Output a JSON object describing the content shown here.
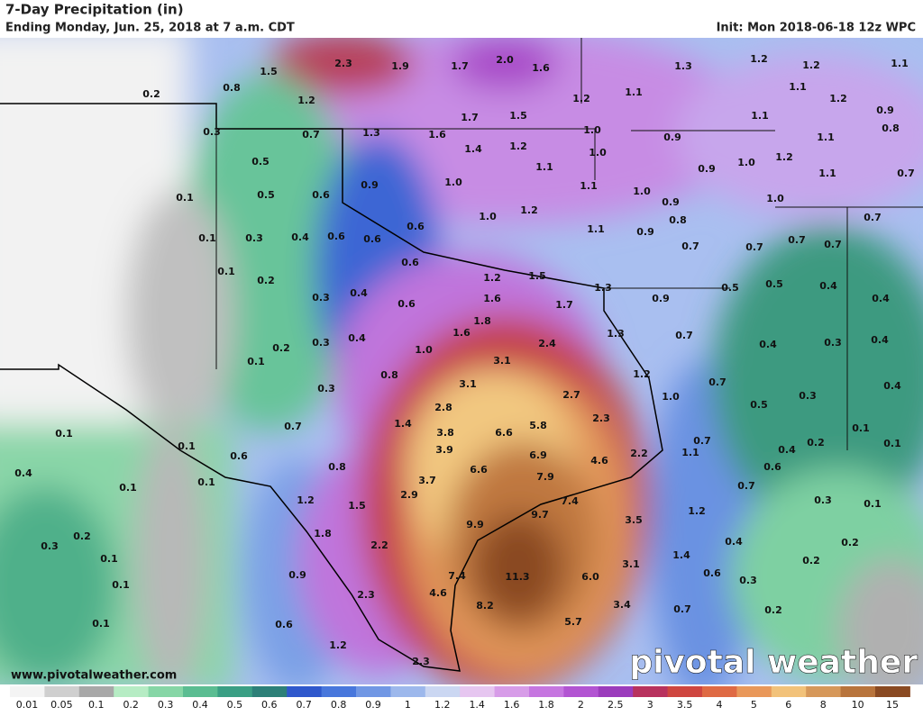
{
  "header": {
    "title": "7-Day Precipitation (in)",
    "subtitle": "Ending Monday, Jun. 25, 2018 at 7 a.m. CDT",
    "init": "Init: Mon 2018-06-18 12z WPC"
  },
  "footer": {
    "website": "www.pivotalweather.com",
    "logo": "pivotal weather"
  },
  "map_labels": [
    "1.5",
    "2.3",
    "1.9",
    "1.7",
    "2.0",
    "1.6",
    "1.3",
    "1.2",
    "1.2",
    "1.1",
    "0.2",
    "0.8",
    "1.2",
    "1.2",
    "1.1",
    "1.1",
    "1.2",
    "0.3",
    "0.7",
    "1.3",
    "1.6",
    "1.7",
    "1.5",
    "1.0",
    "0.9",
    "1.1",
    "0.9",
    "0.8",
    "0.5",
    "1.4",
    "1.2",
    "1.0",
    "1.1",
    "1.2",
    "0.1",
    "0.5",
    "0.6",
    "0.9",
    "1.0",
    "1.1",
    "1.1",
    "0.9",
    "1.0",
    "1.1",
    "0.7",
    "0.1",
    "0.3",
    "0.4",
    "0.6",
    "0.6",
    "0.6",
    "1.0",
    "1.2",
    "1.0",
    "0.9",
    "0.8",
    "0.9",
    "1.0",
    "0.7",
    "1.1",
    "0.7",
    "0.7",
    "0.7",
    "0.7",
    "0.1",
    "0.2",
    "0.6",
    "1.2",
    "1.5",
    "1.3",
    "0.9",
    "0.5",
    "0.5",
    "0.4",
    "0.4",
    "0.3",
    "0.4",
    "0.6",
    "1.6",
    "1.7",
    "1.8",
    "0.2",
    "0.3",
    "0.4",
    "1.6",
    "2.4",
    "1.3",
    "0.7",
    "0.4",
    "0.3",
    "0.4",
    "0.1",
    "1.0",
    "3.1",
    "0.8",
    "1.2",
    "0.7",
    "3.1",
    "2.7",
    "1.0",
    "0.3",
    "0.4",
    "0.5",
    "0.3",
    "2.8",
    "2.3",
    "1.4",
    "0.7",
    "0.1",
    "3.8",
    "6.6",
    "5.8",
    "0.7",
    "0.4",
    "0.2",
    "0.1",
    "0.1",
    "0.1",
    "3.9",
    "6.9",
    "2.2",
    "1.1",
    "0.6",
    "0.8",
    "4.6",
    "0.6",
    "0.4",
    "6.6",
    "7.9",
    "3.7",
    "0.7",
    "0.1",
    "0.1",
    "2.9",
    "7.4",
    "0.3",
    "0.1",
    "1.2",
    "1.5",
    "1.2",
    "9.7",
    "0.3",
    "0.2",
    "1.8",
    "9.9",
    "3.5",
    "0.2",
    "2.2",
    "1.4",
    "0.4",
    "0.1",
    "0.9",
    "7.4",
    "11.3",
    "6.0",
    "3.1",
    "0.6",
    "0.2",
    "0.1",
    "0.3",
    "2.3",
    "4.6",
    "8.2",
    "3.4",
    "0.7",
    "0.2",
    "0.1",
    "0.6",
    "5.7",
    "1.2",
    "2.3"
  ],
  "legend": {
    "labels": [
      "0.01",
      "0.05",
      "0.1",
      "0.2",
      "0.3",
      "0.4",
      "0.5",
      "0.6",
      "0.7",
      "0.8",
      "0.9",
      "1",
      "1.2",
      "1.4",
      "1.6",
      "1.8",
      "2",
      "2.5",
      "3",
      "3.5",
      "4",
      "5",
      "6",
      "8",
      "10",
      "15"
    ],
    "colors": [
      "#f4f4f4",
      "#cfcfcf",
      "#a8a8a8",
      "#b6ecc4",
      "#86d6a6",
      "#5bbd92",
      "#3a9f84",
      "#2d8078",
      "#2f58cc",
      "#4877dc",
      "#7197e4",
      "#9db8ec",
      "#cbd7f2",
      "#e6c6f0",
      "#d79ce8",
      "#c676e0",
      "#b254d2",
      "#9b3cbc",
      "#b8325e",
      "#cf4640",
      "#df6a44",
      "#e9985a",
      "#f2c27a",
      "#d6985a",
      "#b8743c",
      "#8a4a22"
    ]
  }
}
